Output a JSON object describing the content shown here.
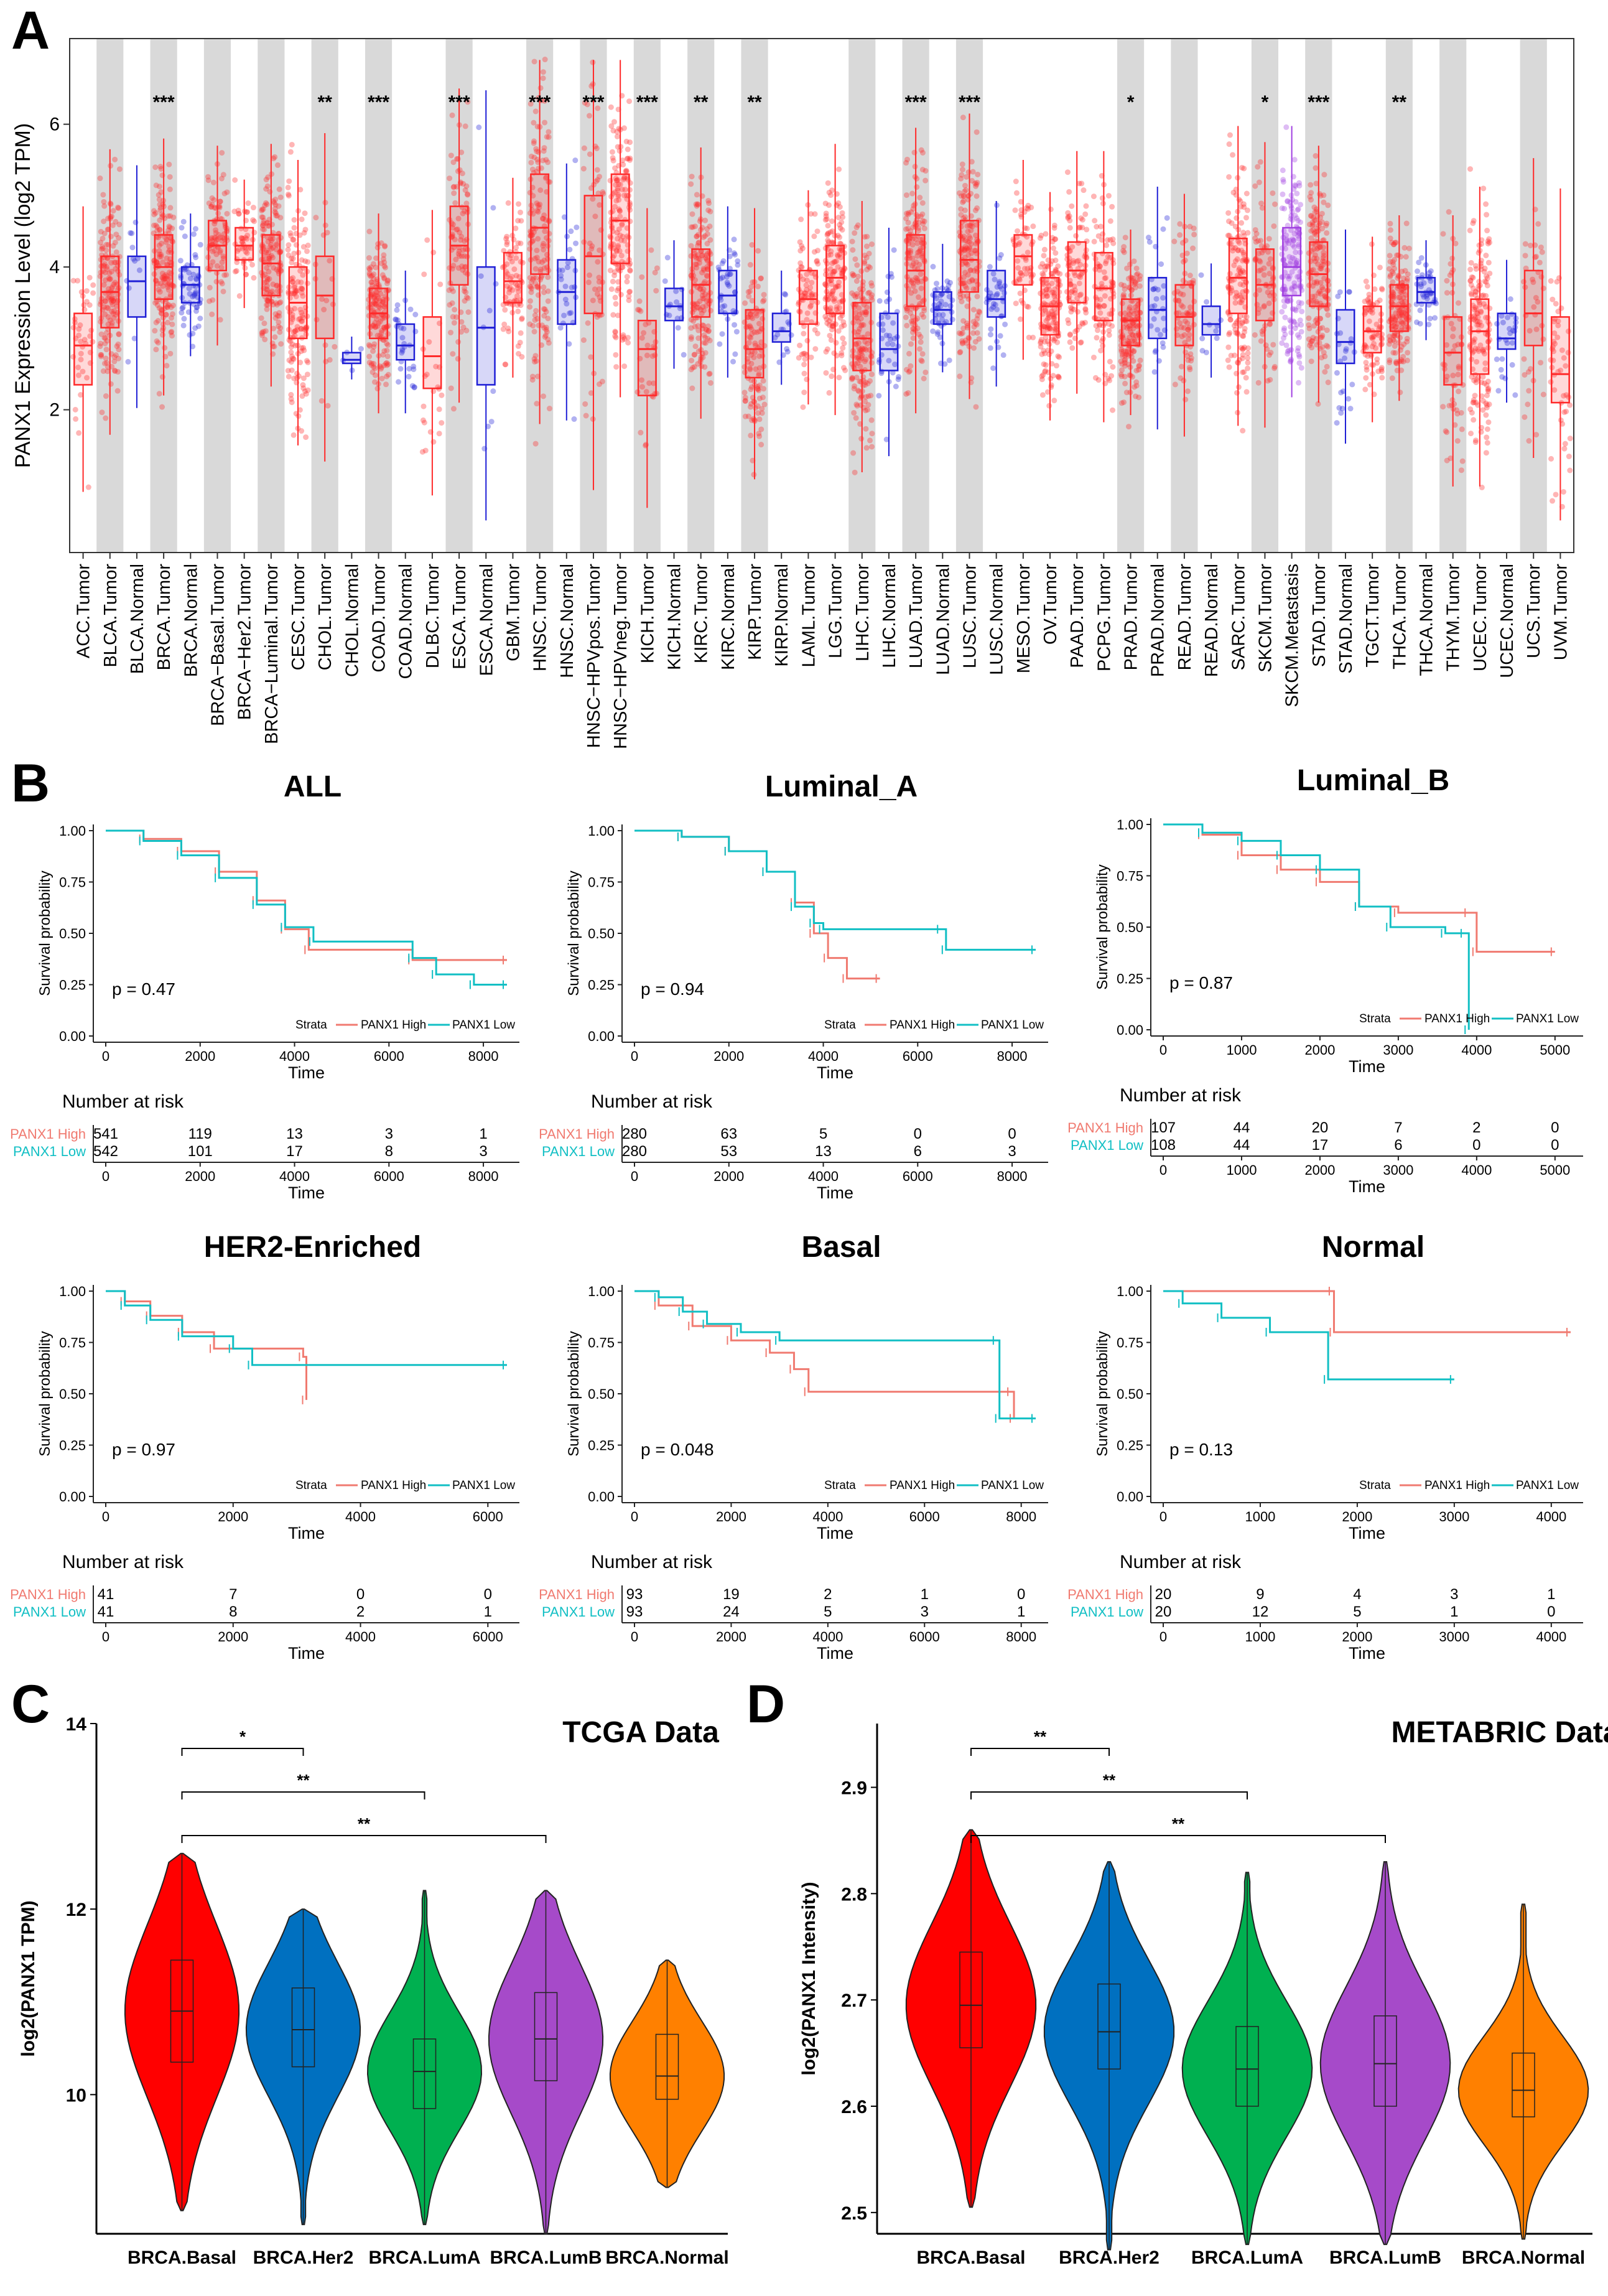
{
  "panel_letters": {
    "a": "A",
    "b": "B",
    "c": "C",
    "d": "D"
  },
  "colors": {
    "tumor": "#ff2a2a",
    "normal": "#1f1fd6",
    "metastasis": "#a03fe0",
    "high": "#f07a70",
    "low": "#11bfc4",
    "shade": "#d9d9d9",
    "violin": [
      "#ff0000",
      "#0070c0",
      "#00b050",
      "#a64ac9",
      "#ff8000"
    ]
  },
  "chart_data": [
    {
      "id": "A",
      "type": "box",
      "ylabel": "PANX1 Expression Level (log2 TPM)",
      "ylim": [
        0,
        7.2
      ],
      "yticks": [
        2,
        4,
        6
      ],
      "categories": [
        "ACC.Tumor",
        "BLCA.Tumor",
        "BLCA.Normal",
        "BRCA.Tumor",
        "BRCA.Normal",
        "BRCA−Basal.Tumor",
        "BRCA−Her2.Tumor",
        "BRCA−Luminal.Tumor",
        "CESC.Tumor",
        "CHOL.Tumor",
        "CHOL.Normal",
        "COAD.Tumor",
        "COAD.Normal",
        "DLBC.Tumor",
        "ESCA.Tumor",
        "ESCA.Normal",
        "GBM.Tumor",
        "HNSC.Tumor",
        "HNSC.Normal",
        "HNSC−HPVpos.Tumor",
        "HNSC−HPVneg.Tumor",
        "KICH.Tumor",
        "KICH.Normal",
        "KIRC.Tumor",
        "KIRC.Normal",
        "KIRP.Tumor",
        "KIRP.Normal",
        "LAML.Tumor",
        "LGG.Tumor",
        "LIHC.Tumor",
        "LIHC.Normal",
        "LUAD.Tumor",
        "LUAD.Normal",
        "LUSC.Tumor",
        "LUSC.Normal",
        "MESO.Tumor",
        "OV.Tumor",
        "PAAD.Tumor",
        "PCPG.Tumor",
        "PRAD.Tumor",
        "PRAD.Normal",
        "READ.Tumor",
        "READ.Normal",
        "SARC.Tumor",
        "SKCM.Tumor",
        "SKCM.Metastasis",
        "STAD.Tumor",
        "STAD.Normal",
        "TGCT.Tumor",
        "THCA.Tumor",
        "THCA.Normal",
        "THYM.Tumor",
        "UCEC.Tumor",
        "UCEC.Normal",
        "UCS.Tumor",
        "UVM.Tumor"
      ],
      "kinds": [
        "T",
        "T",
        "N",
        "T",
        "N",
        "T",
        "T",
        "T",
        "T",
        "T",
        "N",
        "T",
        "N",
        "T",
        "T",
        "N",
        "T",
        "T",
        "N",
        "T",
        "T",
        "T",
        "N",
        "T",
        "N",
        "T",
        "N",
        "T",
        "T",
        "T",
        "N",
        "T",
        "N",
        "T",
        "N",
        "T",
        "T",
        "T",
        "T",
        "T",
        "N",
        "T",
        "N",
        "T",
        "T",
        "M",
        "T",
        "N",
        "T",
        "T",
        "N",
        "T",
        "T",
        "N",
        "T",
        "T"
      ],
      "medians": [
        2.9,
        3.65,
        3.8,
        4.0,
        3.75,
        4.3,
        4.3,
        4.05,
        3.5,
        3.6,
        2.7,
        3.35,
        2.9,
        2.75,
        4.3,
        3.15,
        3.8,
        4.55,
        3.65,
        4.15,
        4.65,
        2.85,
        3.45,
        3.75,
        3.6,
        2.85,
        3.1,
        3.55,
        3.85,
        3.0,
        2.85,
        3.95,
        3.4,
        4.1,
        3.55,
        4.15,
        3.45,
        3.95,
        3.7,
        3.25,
        3.4,
        3.3,
        3.2,
        3.85,
        3.75,
        4.0,
        3.9,
        2.95,
        3.1,
        3.45,
        3.65,
        2.8,
        3.1,
        3.0,
        3.35,
        2.5
      ],
      "q1": [
        2.35,
        3.15,
        3.3,
        3.55,
        3.5,
        3.95,
        4.1,
        3.6,
        3.0,
        3.0,
        2.65,
        3.0,
        2.7,
        2.3,
        3.75,
        2.35,
        3.5,
        3.9,
        3.2,
        3.35,
        4.05,
        2.2,
        3.25,
        3.3,
        3.35,
        2.45,
        2.95,
        3.2,
        3.35,
        2.55,
        2.55,
        3.45,
        3.2,
        3.65,
        3.3,
        3.75,
        3.05,
        3.5,
        3.25,
        2.9,
        3.0,
        2.9,
        3.05,
        3.35,
        3.25,
        3.6,
        3.45,
        2.65,
        2.8,
        3.1,
        3.5,
        2.35,
        2.5,
        2.85,
        2.9,
        2.1
      ],
      "q3": [
        3.35,
        4.15,
        4.15,
        4.45,
        4.0,
        4.65,
        4.55,
        4.45,
        4.0,
        4.15,
        2.8,
        3.7,
        3.2,
        3.3,
        4.85,
        4.0,
        4.2,
        5.3,
        4.1,
        5.0,
        5.3,
        3.25,
        3.7,
        4.25,
        3.95,
        3.4,
        3.35,
        3.95,
        4.3,
        3.5,
        3.35,
        4.45,
        3.65,
        4.65,
        3.95,
        4.45,
        3.85,
        4.35,
        4.2,
        3.55,
        3.85,
        3.75,
        3.45,
        4.4,
        4.25,
        4.55,
        4.35,
        3.4,
        3.45,
        3.75,
        3.85,
        3.3,
        3.55,
        3.35,
        3.95,
        3.3
      ],
      "n": [
        40,
        200,
        12,
        250,
        60,
        90,
        50,
        200,
        150,
        20,
        4,
        200,
        30,
        25,
        100,
        10,
        80,
        250,
        30,
        60,
        220,
        35,
        15,
        200,
        40,
        120,
        15,
        80,
        200,
        200,
        40,
        250,
        50,
        250,
        40,
        60,
        200,
        100,
        100,
        250,
        30,
        80,
        10,
        150,
        80,
        250,
        200,
        25,
        80,
        250,
        40,
        60,
        250,
        25,
        40,
        50
      ],
      "shaded": [
        1,
        3,
        5,
        7,
        9,
        11,
        14,
        17,
        19,
        21,
        23,
        25,
        29,
        31,
        33,
        39,
        41,
        44,
        46,
        49,
        51,
        54
      ],
      "significance": {
        "3": "***",
        "9": "**",
        "11": "***",
        "14": "***",
        "17": "***",
        "19": "***",
        "21": "***",
        "23": "**",
        "25": "**",
        "31": "***",
        "33": "***",
        "39": "*",
        "44": "*",
        "46": "***",
        "49": "**"
      }
    },
    {
      "id": "B-ALL",
      "type": "survival",
      "title": "ALL",
      "pvalue": "p = 0.47",
      "xmax": 8500,
      "xticks": [
        0,
        2000,
        4000,
        6000,
        8000
      ],
      "yticks": [
        "0.00",
        "0.25",
        "0.50",
        "0.75",
        "1.00"
      ],
      "xlabel": "Time",
      "ylabel": "Survival probability",
      "strata": "Strata",
      "legend": [
        "PANX1 High",
        "PANX1 Low"
      ],
      "high": [
        [
          0,
          1
        ],
        [
          800,
          0.96
        ],
        [
          1600,
          0.9
        ],
        [
          2400,
          0.8
        ],
        [
          3200,
          0.66
        ],
        [
          3800,
          0.52
        ],
        [
          4300,
          0.42
        ],
        [
          6500,
          0.37
        ],
        [
          8500,
          0.37
        ]
      ],
      "low": [
        [
          0,
          1
        ],
        [
          800,
          0.95
        ],
        [
          1600,
          0.88
        ],
        [
          2400,
          0.77
        ],
        [
          3200,
          0.64
        ],
        [
          3800,
          0.53
        ],
        [
          4400,
          0.46
        ],
        [
          6500,
          0.38
        ],
        [
          7000,
          0.3
        ],
        [
          7800,
          0.25
        ],
        [
          8500,
          0.25
        ]
      ],
      "risk_title": "Number at risk",
      "risk_labels": [
        "PANX1 High",
        "PANX1 Low"
      ],
      "risk_high": [
        "541",
        "119",
        "13",
        "3",
        "1"
      ],
      "risk_low": [
        "542",
        "101",
        "17",
        "8",
        "3"
      ]
    },
    {
      "id": "B-LumA",
      "type": "survival",
      "title": "Luminal_A",
      "pvalue": "p = 0.94",
      "xmax": 8500,
      "xticks": [
        0,
        2000,
        4000,
        6000,
        8000
      ],
      "yticks": [
        "0.00",
        "0.25",
        "0.50",
        "0.75",
        "1.00"
      ],
      "xlabel": "Time",
      "ylabel": "Survival probability",
      "strata": "Strata",
      "legend": [
        "PANX1 High",
        "PANX1 Low"
      ],
      "high": [
        [
          0,
          1
        ],
        [
          1000,
          0.97
        ],
        [
          2000,
          0.9
        ],
        [
          2800,
          0.8
        ],
        [
          3400,
          0.65
        ],
        [
          3800,
          0.5
        ],
        [
          4100,
          0.38
        ],
        [
          4500,
          0.28
        ],
        [
          5200,
          0.28
        ]
      ],
      "low": [
        [
          0,
          1
        ],
        [
          1000,
          0.97
        ],
        [
          2000,
          0.9
        ],
        [
          2800,
          0.8
        ],
        [
          3400,
          0.63
        ],
        [
          3800,
          0.55
        ],
        [
          4000,
          0.52
        ],
        [
          6500,
          0.52
        ],
        [
          6600,
          0.42
        ],
        [
          8500,
          0.42
        ]
      ],
      "risk_title": "Number at risk",
      "risk_labels": [
        "PANX1 High",
        "PANX1 Low"
      ],
      "risk_high": [
        "280",
        "63",
        "5",
        "0",
        "0"
      ],
      "risk_low": [
        "280",
        "53",
        "13",
        "6",
        "3"
      ]
    },
    {
      "id": "B-LumB",
      "type": "survival",
      "title": "Luminal_B",
      "pvalue": "p = 0.87",
      "xmax": 5200,
      "xticks": [
        0,
        1000,
        2000,
        3000,
        4000,
        5000
      ],
      "yticks": [
        "0.00",
        "0.25",
        "0.50",
        "0.75",
        "1.00"
      ],
      "xlabel": "Time",
      "ylabel": "Survival probability",
      "strata": "Strata",
      "legend": [
        "PANX1 High",
        "PANX1 Low"
      ],
      "high": [
        [
          0,
          1
        ],
        [
          500,
          0.95
        ],
        [
          1000,
          0.85
        ],
        [
          1500,
          0.78
        ],
        [
          2000,
          0.72
        ],
        [
          2500,
          0.6
        ],
        [
          3000,
          0.57
        ],
        [
          3900,
          0.57
        ],
        [
          4000,
          0.38
        ],
        [
          5000,
          0.38
        ]
      ],
      "low": [
        [
          0,
          1
        ],
        [
          500,
          0.96
        ],
        [
          1000,
          0.92
        ],
        [
          1500,
          0.85
        ],
        [
          2000,
          0.78
        ],
        [
          2500,
          0.6
        ],
        [
          2900,
          0.5
        ],
        [
          3600,
          0.47
        ],
        [
          3850,
          0.47
        ],
        [
          3900,
          0.0
        ]
      ],
      "risk_title": "Number at risk",
      "risk_labels": [
        "PANX1 High",
        "PANX1 Low"
      ],
      "risk_high": [
        "107",
        "44",
        "20",
        "7",
        "2",
        "0"
      ],
      "risk_low": [
        "108",
        "44",
        "17",
        "6",
        "0",
        "0"
      ]
    },
    {
      "id": "B-HER2",
      "type": "survival",
      "title": "HER2-Enriched",
      "pvalue": "p = 0.97",
      "xmax": 6300,
      "xticks": [
        0,
        2000,
        4000,
        6000
      ],
      "yticks": [
        "0.00",
        "0.25",
        "0.50",
        "0.75",
        "1.00"
      ],
      "xlabel": "Time",
      "ylabel": "Survival probability",
      "strata": "Strata",
      "legend": [
        "PANX1 High",
        "PANX1 Low"
      ],
      "high": [
        [
          0,
          1
        ],
        [
          300,
          0.95
        ],
        [
          700,
          0.88
        ],
        [
          1200,
          0.8
        ],
        [
          1700,
          0.72
        ],
        [
          3100,
          0.68
        ],
        [
          3150,
          0.47
        ]
      ],
      "low": [
        [
          0,
          1
        ],
        [
          300,
          0.93
        ],
        [
          700,
          0.86
        ],
        [
          1200,
          0.78
        ],
        [
          2000,
          0.72
        ],
        [
          2300,
          0.64
        ],
        [
          6300,
          0.64
        ]
      ],
      "risk_title": "Number at risk",
      "risk_labels": [
        "PANX1 High",
        "PANX1 Low"
      ],
      "risk_high": [
        "41",
        "7",
        "0",
        "0"
      ],
      "risk_low": [
        "41",
        "8",
        "2",
        "1"
      ]
    },
    {
      "id": "B-Basal",
      "type": "survival",
      "title": "Basal",
      "pvalue": "p = 0.048",
      "xmax": 8300,
      "xticks": [
        0,
        2000,
        4000,
        6000,
        8000
      ],
      "yticks": [
        "0.00",
        "0.25",
        "0.50",
        "0.75",
        "1.00"
      ],
      "xlabel": "Time",
      "ylabel": "Survival probability",
      "strata": "Strata",
      "legend": [
        "PANX1 High",
        "PANX1 Low"
      ],
      "high": [
        [
          0,
          1
        ],
        [
          500,
          0.93
        ],
        [
          1200,
          0.83
        ],
        [
          2000,
          0.76
        ],
        [
          2800,
          0.7
        ],
        [
          3300,
          0.62
        ],
        [
          3600,
          0.51
        ],
        [
          7800,
          0.51
        ],
        [
          7850,
          0.38
        ]
      ],
      "low": [
        [
          0,
          1
        ],
        [
          500,
          0.97
        ],
        [
          1000,
          0.9
        ],
        [
          1500,
          0.84
        ],
        [
          2200,
          0.8
        ],
        [
          3000,
          0.76
        ],
        [
          7500,
          0.76
        ],
        [
          7550,
          0.38
        ],
        [
          8300,
          0.38
        ]
      ],
      "risk_title": "Number at risk",
      "risk_labels": [
        "PANX1 High",
        "PANX1 Low"
      ],
      "risk_high": [
        "93",
        "19",
        "2",
        "1",
        "0"
      ],
      "risk_low": [
        "93",
        "24",
        "5",
        "3",
        "1"
      ]
    },
    {
      "id": "B-Normal",
      "type": "survival",
      "title": "Normal",
      "pvalue": "p = 0.13",
      "xmax": 4200,
      "xticks": [
        0,
        1000,
        2000,
        3000,
        4000
      ],
      "yticks": [
        "0.00",
        "0.25",
        "0.50",
        "0.75",
        "1.00"
      ],
      "xlabel": "Time",
      "ylabel": "Survival probability",
      "strata": "Strata",
      "legend": [
        "PANX1 High",
        "PANX1 Low"
      ],
      "high": [
        [
          0,
          1
        ],
        [
          1750,
          1
        ],
        [
          1760,
          0.8
        ],
        [
          4200,
          0.8
        ]
      ],
      "low": [
        [
          0,
          1
        ],
        [
          200,
          0.94
        ],
        [
          600,
          0.87
        ],
        [
          1100,
          0.8
        ],
        [
          1700,
          0.57
        ],
        [
          3000,
          0.57
        ]
      ],
      "risk_title": "Number at risk",
      "risk_labels": [
        "PANX1 High",
        "PANX1 Low"
      ],
      "risk_high": [
        "20",
        "9",
        "4",
        "3",
        "1"
      ],
      "risk_low": [
        "20",
        "12",
        "5",
        "1",
        "0"
      ]
    },
    {
      "id": "C",
      "type": "violin",
      "title": "TCGA Data",
      "ylabel": "log2(PANX1 TPM)",
      "ylim": [
        8.5,
        14
      ],
      "yticks": [
        "10",
        "12",
        "14"
      ],
      "ytick_values": [
        10,
        12,
        14
      ],
      "categories": [
        "BRCA.Basal",
        "BRCA.Her2",
        "BRCA.LumA",
        "BRCA.LumB",
        "BRCA.Normal"
      ],
      "min": [
        8.75,
        8.6,
        8.6,
        8.5,
        9.0
      ],
      "q1": [
        10.35,
        10.3,
        9.85,
        10.15,
        9.95
      ],
      "median": [
        10.9,
        10.7,
        10.25,
        10.6,
        10.2
      ],
      "q3": [
        11.45,
        11.15,
        10.6,
        11.1,
        10.65
      ],
      "max": [
        12.6,
        12.0,
        12.2,
        12.2,
        11.45
      ],
      "brackets": [
        {
          "from": 0,
          "to": 1,
          "label": "*"
        },
        {
          "from": 0,
          "to": 2,
          "label": "**"
        },
        {
          "from": 0,
          "to": 3,
          "label": "**"
        }
      ]
    },
    {
      "id": "D",
      "type": "violin",
      "title": "METABRIC Data",
      "ylabel": "log2(PANX1 Intensity)",
      "ylim": [
        2.48,
        2.96
      ],
      "yticks": [
        "2.5",
        "2.6",
        "2.7",
        "2.8",
        "2.9"
      ],
      "ytick_values": [
        2.5,
        2.6,
        2.7,
        2.8,
        2.9
      ],
      "categories": [
        "BRCA.Basal",
        "BRCA.Her2",
        "BRCA.LumA",
        "BRCA.LumB",
        "BRCA.Normal"
      ],
      "min": [
        2.505,
        2.465,
        2.47,
        2.47,
        2.475
      ],
      "q1": [
        2.655,
        2.635,
        2.6,
        2.6,
        2.59
      ],
      "median": [
        2.695,
        2.67,
        2.635,
        2.64,
        2.615
      ],
      "q3": [
        2.745,
        2.715,
        2.675,
        2.685,
        2.65
      ],
      "max": [
        2.86,
        2.83,
        2.82,
        2.83,
        2.79
      ],
      "brackets": [
        {
          "from": 0,
          "to": 1,
          "label": "**"
        },
        {
          "from": 0,
          "to": 2,
          "label": "**"
        },
        {
          "from": 0,
          "to": 3,
          "label": "**"
        }
      ]
    }
  ]
}
